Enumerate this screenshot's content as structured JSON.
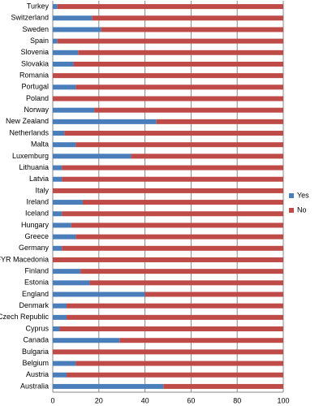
{
  "chart_data": {
    "type": "stacked-bar-horizontal",
    "categories": [
      "Turkey",
      "Switzerland",
      "Sweden",
      "Spain",
      "Slovenia",
      "Slovakia",
      "Romania",
      "Portugal",
      "Poland",
      "Norway",
      "New Zealand",
      "Netherlands",
      "Malta",
      "Luxemburg",
      "Lithuania",
      "Latvia",
      "Italy",
      "Ireland",
      "Iceland",
      "Hungary",
      "Greece",
      "Germany",
      "FYR Macedonia",
      "Finland",
      "Estonia",
      "England",
      "Denmark",
      "Czech Republic",
      "Cyprus",
      "Canada",
      "Bulgaria",
      "Belgium",
      "Austria",
      "Australia"
    ],
    "series": [
      {
        "name": "Yes",
        "color": "#4a7ebb",
        "values": [
          2,
          17,
          21,
          2,
          11,
          9,
          0,
          10,
          0,
          18,
          45,
          5,
          10,
          34,
          4,
          4,
          0,
          13,
          4,
          8,
          10,
          4,
          0,
          12,
          16,
          40,
          6,
          6,
          3,
          29,
          0,
          10,
          6,
          48
        ]
      },
      {
        "name": "No",
        "color": "#be4b48",
        "values": [
          98,
          83,
          79,
          98,
          89,
          91,
          100,
          90,
          100,
          82,
          55,
          95,
          90,
          66,
          96,
          96,
          100,
          87,
          96,
          92,
          90,
          96,
          100,
          88,
          84,
          60,
          94,
          94,
          97,
          71,
          100,
          90,
          94,
          52
        ]
      }
    ],
    "xlim": [
      0,
      100
    ],
    "xticks": [
      0,
      20,
      40,
      60,
      80,
      100
    ],
    "grid": true,
    "legend": "right"
  }
}
